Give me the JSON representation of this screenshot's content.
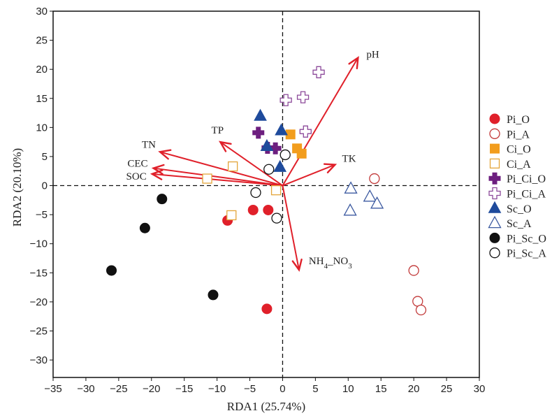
{
  "chart_data": {
    "type": "scatter",
    "xlabel": "RDA1 (25.74%)",
    "ylabel": "RDA2 (20.10%)",
    "xlim": [
      -35,
      30
    ],
    "ylim": [
      -33,
      30
    ],
    "xticks": [
      -35,
      -30,
      -25,
      -20,
      -15,
      -10,
      -5,
      0,
      5,
      10,
      15,
      20,
      25,
      30
    ],
    "yticks": [
      -30,
      -25,
      -20,
      -15,
      -10,
      -5,
      0,
      5,
      10,
      15,
      20,
      25,
      30
    ],
    "xtick_labels": [
      "−35",
      "−30",
      "−25",
      "−20",
      "−15",
      "−10",
      "−5",
      "0",
      "5",
      "10",
      "15",
      "20",
      "25",
      "30"
    ],
    "ytick_labels": [
      "−30",
      "−25",
      "−20",
      "−15",
      "−10",
      "−5",
      "0",
      "5",
      "10",
      "15",
      "20",
      "25",
      "30"
    ],
    "grid": false,
    "legend_position": "right",
    "arrow_color": "#e0202a",
    "env_vectors": [
      {
        "name": "pH",
        "label_parts": [
          {
            "t": "pH"
          }
        ],
        "x": 11.5,
        "y": 22
      },
      {
        "name": "TK",
        "label_parts": [
          {
            "t": "TK"
          }
        ],
        "x": 8,
        "y": 3.6
      },
      {
        "name": "TP",
        "label_parts": [
          {
            "t": "TP"
          }
        ],
        "x": -9.5,
        "y": 7.5
      },
      {
        "name": "TN",
        "label_parts": [
          {
            "t": "TN"
          }
        ],
        "x": -18.7,
        "y": 5.8
      },
      {
        "name": "CEC",
        "label_parts": [
          {
            "t": "CEC"
          }
        ],
        "x": -19.7,
        "y": 3.0
      },
      {
        "name": "SOC",
        "label_parts": [
          {
            "t": "SOC"
          }
        ],
        "x": -19.9,
        "y": 2.0
      },
      {
        "name": "NH4_NO3",
        "label_parts": [
          {
            "t": "NH"
          },
          {
            "t": "4",
            "sub": true
          },
          {
            "t": "_NO"
          },
          {
            "t": "3",
            "sub": true
          }
        ],
        "x": 2.5,
        "y": -14.5
      }
    ],
    "series": [
      {
        "name": "Pi_O",
        "marker": "circle",
        "filled": true,
        "color": "#e0202a",
        "points": [
          [
            -8.4,
            -6.0
          ],
          [
            -4.5,
            -4.2
          ],
          [
            -2.2,
            -4.2
          ],
          [
            -2.4,
            -21.2
          ]
        ]
      },
      {
        "name": "Pi_A",
        "marker": "circle",
        "filled": false,
        "color": "#c23a3a",
        "points": [
          [
            14.0,
            1.2
          ],
          [
            20.0,
            -14.6
          ],
          [
            20.6,
            -19.9
          ],
          [
            21.1,
            -21.4
          ]
        ]
      },
      {
        "name": "Ci_O",
        "marker": "square",
        "filled": true,
        "color": "#f29d1d",
        "points": [
          [
            1.2,
            8.8
          ],
          [
            2.2,
            6.4
          ],
          [
            2.9,
            5.5
          ]
        ]
      },
      {
        "name": "Ci_A",
        "marker": "square",
        "filled": false,
        "color": "#e3a53a",
        "points": [
          [
            -7.6,
            3.3
          ],
          [
            -11.5,
            1.2
          ],
          [
            -1.0,
            -0.8
          ],
          [
            -7.8,
            -5.1
          ]
        ]
      },
      {
        "name": "Pi_Ci_O",
        "marker": "cross",
        "filled": true,
        "color": "#6d1f7f",
        "points": [
          [
            -3.7,
            9.1
          ],
          [
            -2.3,
            6.5
          ],
          [
            -1.1,
            6.4
          ]
        ]
      },
      {
        "name": "Pi_Ci_A",
        "marker": "cross",
        "filled": false,
        "color": "#8c4a9a",
        "points": [
          [
            5.5,
            19.5
          ],
          [
            0.5,
            14.7
          ],
          [
            3.1,
            15.2
          ],
          [
            3.5,
            9.3
          ]
        ]
      },
      {
        "name": "Sc_O",
        "marker": "triangle",
        "filled": true,
        "color": "#1f4b9c",
        "points": [
          [
            -3.4,
            12.0
          ],
          [
            -0.2,
            9.5
          ],
          [
            -2.4,
            6.8
          ],
          [
            -0.4,
            3.2
          ]
        ]
      },
      {
        "name": "Sc_A",
        "marker": "triangle",
        "filled": false,
        "color": "#3c5aa0",
        "points": [
          [
            10.4,
            -0.5
          ],
          [
            13.3,
            -1.9
          ],
          [
            14.4,
            -3.1
          ],
          [
            10.3,
            -4.3
          ]
        ]
      },
      {
        "name": "Pi_Sc_O",
        "marker": "circle",
        "filled": true,
        "color": "#111111",
        "points": [
          [
            -18.4,
            -2.3
          ],
          [
            -21.0,
            -7.3
          ],
          [
            -26.1,
            -14.6
          ],
          [
            -10.6,
            -18.8
          ]
        ]
      },
      {
        "name": "Pi_Sc_A",
        "marker": "circle",
        "filled": false,
        "color": "#111111",
        "points": [
          [
            0.4,
            5.3
          ],
          [
            -2.1,
            2.8
          ],
          [
            -4.1,
            -1.2
          ],
          [
            -0.9,
            -5.6
          ]
        ]
      }
    ]
  }
}
